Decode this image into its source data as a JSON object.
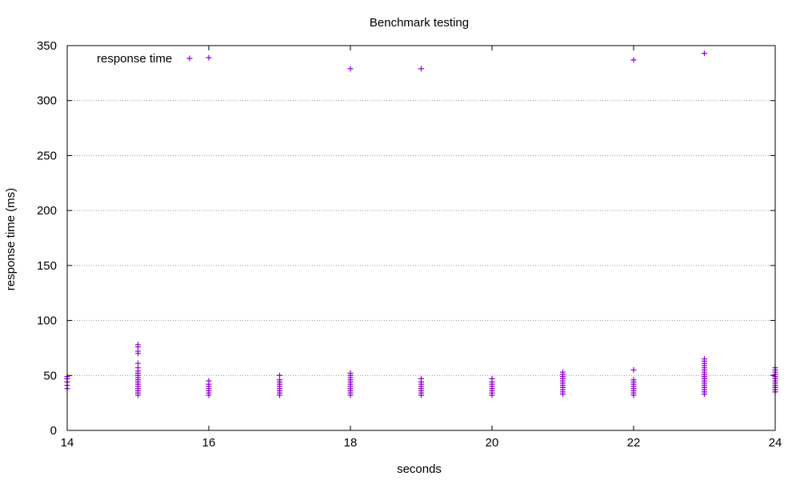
{
  "chart_data": {
    "type": "scatter",
    "title": "Benchmark testing",
    "xlabel": "seconds",
    "ylabel": "response time (ms)",
    "xlim": [
      14,
      24
    ],
    "ylim": [
      0,
      350
    ],
    "x_ticks": [
      14,
      16,
      18,
      20,
      22,
      24
    ],
    "y_ticks": [
      0,
      50,
      100,
      150,
      200,
      250,
      300,
      350
    ],
    "grid": "horizontal-dotted",
    "legend": "top-left",
    "marker": "plus",
    "series": [
      {
        "name": "response time",
        "color": "#9400d3",
        "points": [
          [
            14,
            38
          ],
          [
            14,
            41
          ],
          [
            14,
            44
          ],
          [
            14,
            47
          ],
          [
            14,
            49
          ],
          [
            15,
            32
          ],
          [
            15,
            34
          ],
          [
            15,
            36
          ],
          [
            15,
            38
          ],
          [
            15,
            40
          ],
          [
            15,
            42
          ],
          [
            15,
            44
          ],
          [
            15,
            46
          ],
          [
            15,
            48
          ],
          [
            15,
            50
          ],
          [
            15,
            52
          ],
          [
            15,
            54
          ],
          [
            15,
            57
          ],
          [
            15,
            61
          ],
          [
            15,
            70
          ],
          [
            15,
            72
          ],
          [
            15,
            76
          ],
          [
            15,
            78
          ],
          [
            16,
            32
          ],
          [
            16,
            34
          ],
          [
            16,
            36
          ],
          [
            16,
            38
          ],
          [
            16,
            40
          ],
          [
            16,
            42
          ],
          [
            16,
            45
          ],
          [
            16,
            339
          ],
          [
            17,
            32
          ],
          [
            17,
            34
          ],
          [
            17,
            36
          ],
          [
            17,
            38
          ],
          [
            17,
            40
          ],
          [
            17,
            42
          ],
          [
            17,
            44
          ],
          [
            17,
            46
          ],
          [
            17,
            50
          ],
          [
            18,
            32
          ],
          [
            18,
            34
          ],
          [
            18,
            36
          ],
          [
            18,
            38
          ],
          [
            18,
            40
          ],
          [
            18,
            42
          ],
          [
            18,
            44
          ],
          [
            18,
            46
          ],
          [
            18,
            48
          ],
          [
            18,
            50
          ],
          [
            18,
            52
          ],
          [
            18,
            329
          ],
          [
            19,
            32
          ],
          [
            19,
            34
          ],
          [
            19,
            36
          ],
          [
            19,
            38
          ],
          [
            19,
            40
          ],
          [
            19,
            42
          ],
          [
            19,
            44
          ],
          [
            19,
            47
          ],
          [
            19,
            329
          ],
          [
            20,
            32
          ],
          [
            20,
            34
          ],
          [
            20,
            36
          ],
          [
            20,
            38
          ],
          [
            20,
            40
          ],
          [
            20,
            42
          ],
          [
            20,
            44
          ],
          [
            20,
            47
          ],
          [
            21,
            33
          ],
          [
            21,
            35
          ],
          [
            21,
            37
          ],
          [
            21,
            39
          ],
          [
            21,
            41
          ],
          [
            21,
            43
          ],
          [
            21,
            45
          ],
          [
            21,
            47
          ],
          [
            21,
            49
          ],
          [
            21,
            51
          ],
          [
            21,
            53
          ],
          [
            22,
            32
          ],
          [
            22,
            34
          ],
          [
            22,
            36
          ],
          [
            22,
            38
          ],
          [
            22,
            40
          ],
          [
            22,
            42
          ],
          [
            22,
            44
          ],
          [
            22,
            46
          ],
          [
            22,
            55
          ],
          [
            22,
            337
          ],
          [
            23,
            33
          ],
          [
            23,
            35
          ],
          [
            23,
            37
          ],
          [
            23,
            39
          ],
          [
            23,
            41
          ],
          [
            23,
            43
          ],
          [
            23,
            45
          ],
          [
            23,
            47
          ],
          [
            23,
            49
          ],
          [
            23,
            51
          ],
          [
            23,
            53
          ],
          [
            23,
            55
          ],
          [
            23,
            57
          ],
          [
            23,
            59
          ],
          [
            23,
            61
          ],
          [
            23,
            63
          ],
          [
            23,
            65
          ],
          [
            23,
            343
          ],
          [
            24,
            35
          ],
          [
            24,
            37
          ],
          [
            24,
            39
          ],
          [
            24,
            41
          ],
          [
            24,
            43
          ],
          [
            24,
            45
          ],
          [
            24,
            47
          ],
          [
            24,
            49
          ],
          [
            24,
            51
          ],
          [
            24,
            53
          ],
          [
            24,
            55
          ],
          [
            24,
            57
          ]
        ]
      }
    ]
  }
}
